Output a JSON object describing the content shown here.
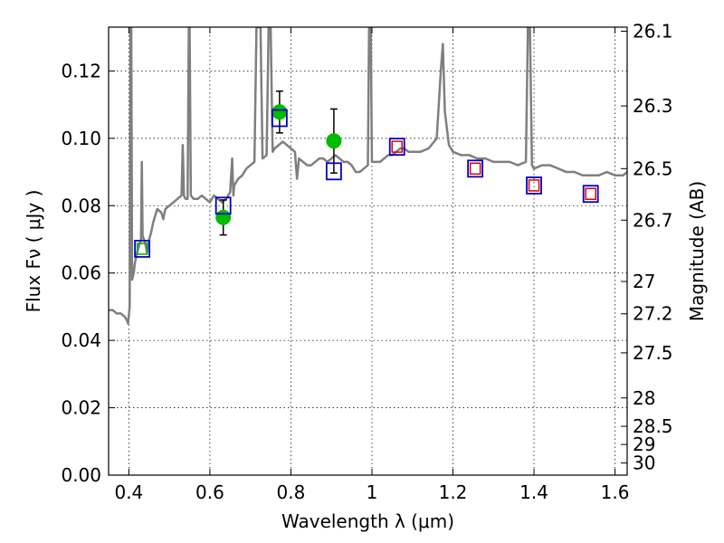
{
  "chart_data": {
    "type": "scatter",
    "xlabel": "Wavelength  λ (μm)",
    "ylabel": "Flux  Fν  ( μJy )",
    "ylabel_right": "Magnitude (AB)",
    "xlim": [
      0.35,
      1.63
    ],
    "ylim": [
      0.0,
      0.133
    ],
    "grid": true,
    "x_ticks": [
      0.4,
      0.6,
      0.8,
      1.0,
      1.2,
      1.4,
      1.6
    ],
    "x_tick_labels": [
      "0.4",
      "0.6",
      "0.8",
      "1",
      "1.2",
      "1.4",
      "1.6"
    ],
    "y_ticks": [
      0.0,
      0.02,
      0.04,
      0.06,
      0.08,
      0.1,
      0.12
    ],
    "y_tick_labels": [
      "0.00",
      "0.02",
      "0.04",
      "0.06",
      "0.08",
      "0.10",
      "0.12"
    ],
    "right_ticks": [
      {
        "flux": 0.1318,
        "label": "26.1"
      },
      {
        "flux": 0.1096,
        "label": "26.3"
      },
      {
        "flux": 0.091,
        "label": "26.5"
      },
      {
        "flux": 0.0757,
        "label": "26.7"
      },
      {
        "flux": 0.0575,
        "label": "27"
      },
      {
        "flux": 0.0479,
        "label": "27.2"
      },
      {
        "flux": 0.0363,
        "label": "27.5"
      },
      {
        "flux": 0.0229,
        "label": "28"
      },
      {
        "flux": 0.0145,
        "label": "28.5"
      },
      {
        "flux": 0.0091,
        "label": "29"
      },
      {
        "flux": 0.0036,
        "label": "30"
      }
    ],
    "series": [
      {
        "type": "line",
        "color": "#7f7f7f",
        "points": [
          [
            0.35,
            0.049
          ],
          [
            0.36,
            0.049
          ],
          [
            0.37,
            0.048
          ],
          [
            0.38,
            0.048
          ],
          [
            0.39,
            0.047
          ],
          [
            0.395,
            0.046
          ],
          [
            0.398,
            0.045
          ],
          [
            0.402,
            0.05
          ],
          [
            0.404,
            0.133
          ],
          [
            0.406,
            0.133
          ],
          [
            0.408,
            0.058
          ],
          [
            0.412,
            0.06
          ],
          [
            0.415,
            0.063
          ],
          [
            0.42,
            0.066
          ],
          [
            0.425,
            0.068
          ],
          [
            0.43,
            0.07
          ],
          [
            0.432,
            0.093
          ],
          [
            0.434,
            0.071
          ],
          [
            0.44,
            0.069
          ],
          [
            0.445,
            0.066
          ],
          [
            0.45,
            0.07
          ],
          [
            0.455,
            0.072
          ],
          [
            0.46,
            0.075
          ],
          [
            0.465,
            0.077
          ],
          [
            0.47,
            0.079
          ],
          [
            0.48,
            0.078
          ],
          [
            0.485,
            0.076
          ],
          [
            0.49,
            0.079
          ],
          [
            0.5,
            0.08
          ],
          [
            0.51,
            0.081
          ],
          [
            0.52,
            0.082
          ],
          [
            0.53,
            0.083
          ],
          [
            0.533,
            0.098
          ],
          [
            0.536,
            0.083
          ],
          [
            0.54,
            0.082
          ],
          [
            0.545,
            0.082
          ],
          [
            0.548,
            0.133
          ],
          [
            0.55,
            0.133
          ],
          [
            0.553,
            0.083
          ],
          [
            0.56,
            0.082
          ],
          [
            0.57,
            0.082
          ],
          [
            0.58,
            0.083
          ],
          [
            0.59,
            0.082
          ],
          [
            0.6,
            0.081
          ],
          [
            0.61,
            0.083
          ],
          [
            0.62,
            0.082
          ],
          [
            0.63,
            0.081
          ],
          [
            0.64,
            0.082
          ],
          [
            0.65,
            0.084
          ],
          [
            0.655,
            0.094
          ],
          [
            0.658,
            0.083
          ],
          [
            0.66,
            0.086
          ],
          [
            0.67,
            0.088
          ],
          [
            0.68,
            0.089
          ],
          [
            0.69,
            0.091
          ],
          [
            0.7,
            0.092
          ],
          [
            0.71,
            0.093
          ],
          [
            0.715,
            0.133
          ],
          [
            0.725,
            0.133
          ],
          [
            0.73,
            0.094
          ],
          [
            0.74,
            0.095
          ],
          [
            0.745,
            0.133
          ],
          [
            0.75,
            0.133
          ],
          [
            0.755,
            0.096
          ],
          [
            0.76,
            0.097
          ],
          [
            0.77,
            0.098
          ],
          [
            0.78,
            0.099
          ],
          [
            0.79,
            0.098
          ],
          [
            0.8,
            0.097
          ],
          [
            0.81,
            0.096
          ],
          [
            0.815,
            0.088
          ],
          [
            0.82,
            0.094
          ],
          [
            0.83,
            0.093
          ],
          [
            0.84,
            0.092
          ],
          [
            0.85,
            0.092
          ],
          [
            0.86,
            0.093
          ],
          [
            0.87,
            0.094
          ],
          [
            0.88,
            0.094
          ],
          [
            0.89,
            0.093
          ],
          [
            0.9,
            0.094
          ],
          [
            0.91,
            0.095
          ],
          [
            0.92,
            0.094
          ],
          [
            0.93,
            0.093
          ],
          [
            0.94,
            0.093
          ],
          [
            0.95,
            0.092
          ],
          [
            0.96,
            0.09
          ],
          [
            0.97,
            0.09
          ],
          [
            0.98,
            0.091
          ],
          [
            0.99,
            0.092
          ],
          [
            0.993,
            0.133
          ],
          [
            0.997,
            0.133
          ],
          [
            1.0,
            0.093
          ],
          [
            1.01,
            0.093
          ],
          [
            1.02,
            0.093
          ],
          [
            1.03,
            0.094
          ],
          [
            1.04,
            0.095
          ],
          [
            1.05,
            0.095
          ],
          [
            1.06,
            0.096
          ],
          [
            1.07,
            0.097
          ],
          [
            1.08,
            0.097
          ],
          [
            1.09,
            0.096
          ],
          [
            1.1,
            0.096
          ],
          [
            1.12,
            0.096
          ],
          [
            1.14,
            0.097
          ],
          [
            1.16,
            0.1
          ],
          [
            1.17,
            0.12
          ],
          [
            1.175,
            0.128
          ],
          [
            1.18,
            0.108
          ],
          [
            1.19,
            0.098
          ],
          [
            1.2,
            0.096
          ],
          [
            1.22,
            0.095
          ],
          [
            1.24,
            0.095
          ],
          [
            1.26,
            0.094
          ],
          [
            1.28,
            0.094
          ],
          [
            1.3,
            0.093
          ],
          [
            1.32,
            0.093
          ],
          [
            1.34,
            0.093
          ],
          [
            1.36,
            0.092
          ],
          [
            1.38,
            0.093
          ],
          [
            1.385,
            0.133
          ],
          [
            1.39,
            0.133
          ],
          [
            1.395,
            0.092
          ],
          [
            1.4,
            0.091
          ],
          [
            1.42,
            0.092
          ],
          [
            1.44,
            0.092
          ],
          [
            1.46,
            0.091
          ],
          [
            1.48,
            0.09
          ],
          [
            1.5,
            0.09
          ],
          [
            1.52,
            0.089
          ],
          [
            1.54,
            0.089
          ],
          [
            1.56,
            0.089
          ],
          [
            1.58,
            0.09
          ],
          [
            1.6,
            0.089
          ],
          [
            1.62,
            0.089
          ],
          [
            1.63,
            0.09
          ]
        ]
      },
      {
        "type": "points",
        "marker": "circle",
        "color": "#00bb00",
        "points": [
          {
            "x": 0.633,
            "y": 0.0765,
            "err": 0.0052
          },
          {
            "x": 0.772,
            "y": 0.1078,
            "err": 0.0062
          },
          {
            "x": 0.906,
            "y": 0.0992,
            "err": 0.0095
          }
        ]
      },
      {
        "type": "points",
        "marker": "square",
        "color": "#0000cc",
        "points": [
          {
            "x": 0.433,
            "y": 0.0672
          },
          {
            "x": 0.633,
            "y": 0.08
          },
          {
            "x": 0.772,
            "y": 0.106
          },
          {
            "x": 0.906,
            "y": 0.0902
          },
          {
            "x": 1.062,
            "y": 0.0975
          },
          {
            "x": 1.255,
            "y": 0.091
          },
          {
            "x": 1.4,
            "y": 0.086
          },
          {
            "x": 1.54,
            "y": 0.0835
          }
        ]
      },
      {
        "type": "points",
        "marker": "square-small",
        "color": "#dd0000",
        "points": [
          {
            "x": 1.062,
            "y": 0.0975
          },
          {
            "x": 1.255,
            "y": 0.091
          },
          {
            "x": 1.4,
            "y": 0.086
          },
          {
            "x": 1.54,
            "y": 0.0835
          }
        ]
      },
      {
        "type": "points",
        "marker": "square-small",
        "color": "#00aa00",
        "points": [
          {
            "x": 0.433,
            "y": 0.0672
          }
        ]
      }
    ]
  }
}
